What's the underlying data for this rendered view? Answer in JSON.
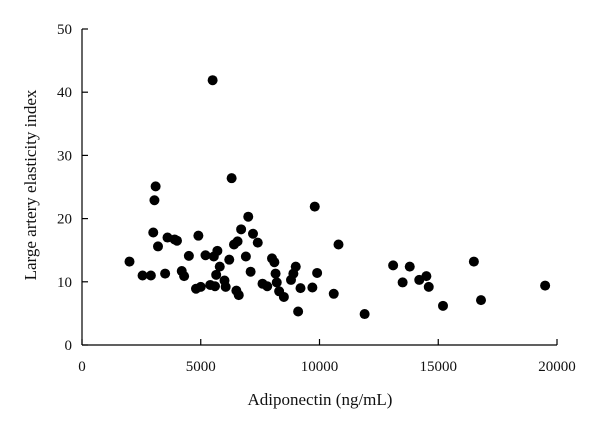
{
  "chart_data": {
    "type": "scatter",
    "title": "",
    "xlabel": "Adiponectin (ng/mL)",
    "ylabel": "Large artery elasticity index",
    "xlim": [
      0,
      20000
    ],
    "ylim": [
      0,
      50
    ],
    "xticks": [
      0,
      5000,
      10000,
      15000,
      20000
    ],
    "yticks": [
      0,
      10,
      20,
      30,
      40,
      50
    ],
    "grid": false,
    "legend": "none",
    "marker_color": "#000000",
    "series": [
      {
        "x": [
          2000,
          2550,
          2900,
          3000,
          3050,
          3100,
          3200,
          3500,
          3600,
          3900,
          4000,
          4200,
          4300,
          4500,
          4800,
          4900,
          5000,
          5200,
          5400,
          5500,
          5550,
          5600,
          5650,
          5700,
          5800,
          6000,
          6050,
          6200,
          6300,
          6400,
          6500,
          6550,
          6600,
          6700,
          6900,
          7000,
          7100,
          7200,
          7400,
          7600,
          7800,
          8000,
          8100,
          8150,
          8200,
          8300,
          8500,
          8800,
          8900,
          9000,
          9100,
          9200,
          9700,
          9800,
          9900,
          10600,
          10800,
          11900,
          13100,
          13500,
          13800,
          14200,
          14500,
          14600,
          15200,
          16500,
          16800,
          19500
        ],
        "y": [
          13.2,
          11.0,
          11.0,
          17.8,
          22.9,
          25.1,
          15.6,
          11.3,
          17.0,
          16.7,
          16.5,
          11.7,
          10.9,
          14.1,
          8.9,
          17.3,
          9.2,
          14.2,
          9.5,
          41.9,
          14.0,
          9.3,
          11.1,
          14.9,
          12.4,
          10.2,
          9.2,
          13.5,
          26.4,
          15.9,
          8.6,
          16.4,
          7.9,
          18.3,
          14.0,
          20.3,
          11.6,
          17.6,
          16.2,
          9.7,
          9.3,
          13.7,
          13.1,
          11.3,
          9.9,
          8.5,
          7.6,
          10.3,
          11.3,
          12.4,
          5.3,
          9.0,
          9.1,
          21.9,
          11.4,
          8.1,
          15.9,
          4.9,
          12.6,
          9.9,
          12.4,
          10.3,
          10.9,
          9.2,
          6.2,
          13.2,
          7.1,
          9.4
        ]
      }
    ]
  }
}
